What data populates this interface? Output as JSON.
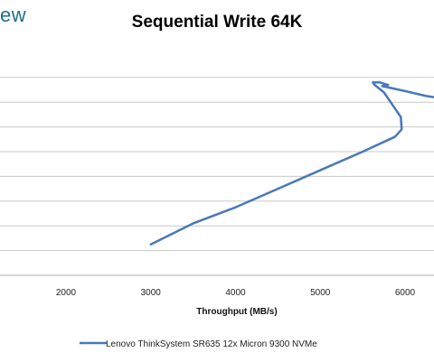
{
  "brand": {
    "text": "ew",
    "color": "#1f6f8b"
  },
  "chart_data": {
    "type": "line",
    "title": "Sequential Write 64K",
    "xlabel": "Throughput (MB/s)",
    "ylabel": "",
    "xlim": [
      1000,
      6350
    ],
    "ylim": [
      0,
      10
    ],
    "x_ticks": [
      2000,
      3000,
      4000,
      5000,
      6000
    ],
    "y_gridlines": [
      1,
      2,
      3,
      4,
      5,
      6,
      7,
      8
    ],
    "grid": true,
    "legend_position": "bottom",
    "series": [
      {
        "name": "Lenovo ThinkSystem SR635 12x Micron 9300 NVMe",
        "color": "#4a78b8",
        "points": [
          {
            "x": 3000,
            "y": 1.25
          },
          {
            "x": 3500,
            "y": 2.1
          },
          {
            "x": 4000,
            "y": 2.75
          },
          {
            "x": 4500,
            "y": 3.5
          },
          {
            "x": 5000,
            "y": 4.25
          },
          {
            "x": 5500,
            "y": 5.0
          },
          {
            "x": 5880,
            "y": 5.6
          },
          {
            "x": 5960,
            "y": 5.9
          },
          {
            "x": 5950,
            "y": 6.4
          },
          {
            "x": 5850,
            "y": 6.9
          },
          {
            "x": 5750,
            "y": 7.4
          },
          {
            "x": 5640,
            "y": 7.7
          },
          {
            "x": 5620,
            "y": 7.8
          },
          {
            "x": 5700,
            "y": 7.8
          },
          {
            "x": 5800,
            "y": 7.7
          },
          {
            "x": 5730,
            "y": 7.65
          },
          {
            "x": 6000,
            "y": 7.45
          },
          {
            "x": 6250,
            "y": 7.25
          },
          {
            "x": 6350,
            "y": 7.2
          }
        ]
      }
    ]
  }
}
